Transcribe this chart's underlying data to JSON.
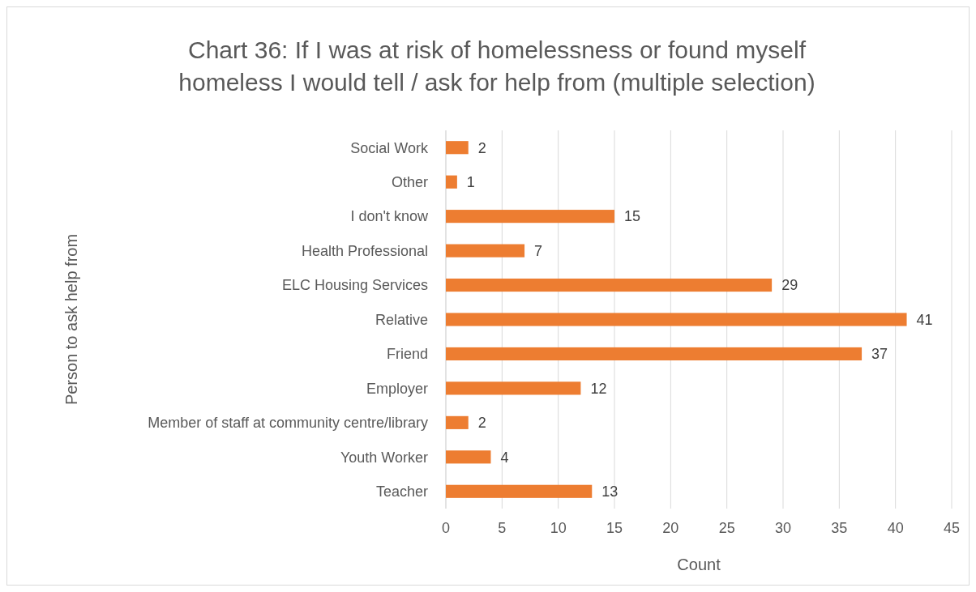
{
  "chart_data": {
    "type": "bar",
    "orientation": "horizontal",
    "title": "Chart 36: If I was at risk of homelessness or found myself homeless I would tell / ask for help from (multiple selection)",
    "xlabel": "Count",
    "ylabel": "Person to ask help from",
    "categories": [
      "Social Work",
      "Other",
      "I don't know",
      "Health Professional",
      "ELC Housing Services",
      "Relative",
      "Friend",
      "Employer",
      "Member of staff at community centre/library",
      "Youth Worker",
      "Teacher"
    ],
    "values": [
      2,
      1,
      15,
      7,
      29,
      41,
      37,
      12,
      2,
      4,
      13
    ],
    "color": "#ed7d31",
    "xlim": [
      0,
      45
    ],
    "xticks": [
      0,
      5,
      10,
      15,
      20,
      25,
      30,
      35,
      40,
      45
    ],
    "grid": "x",
    "data_labels": true
  }
}
